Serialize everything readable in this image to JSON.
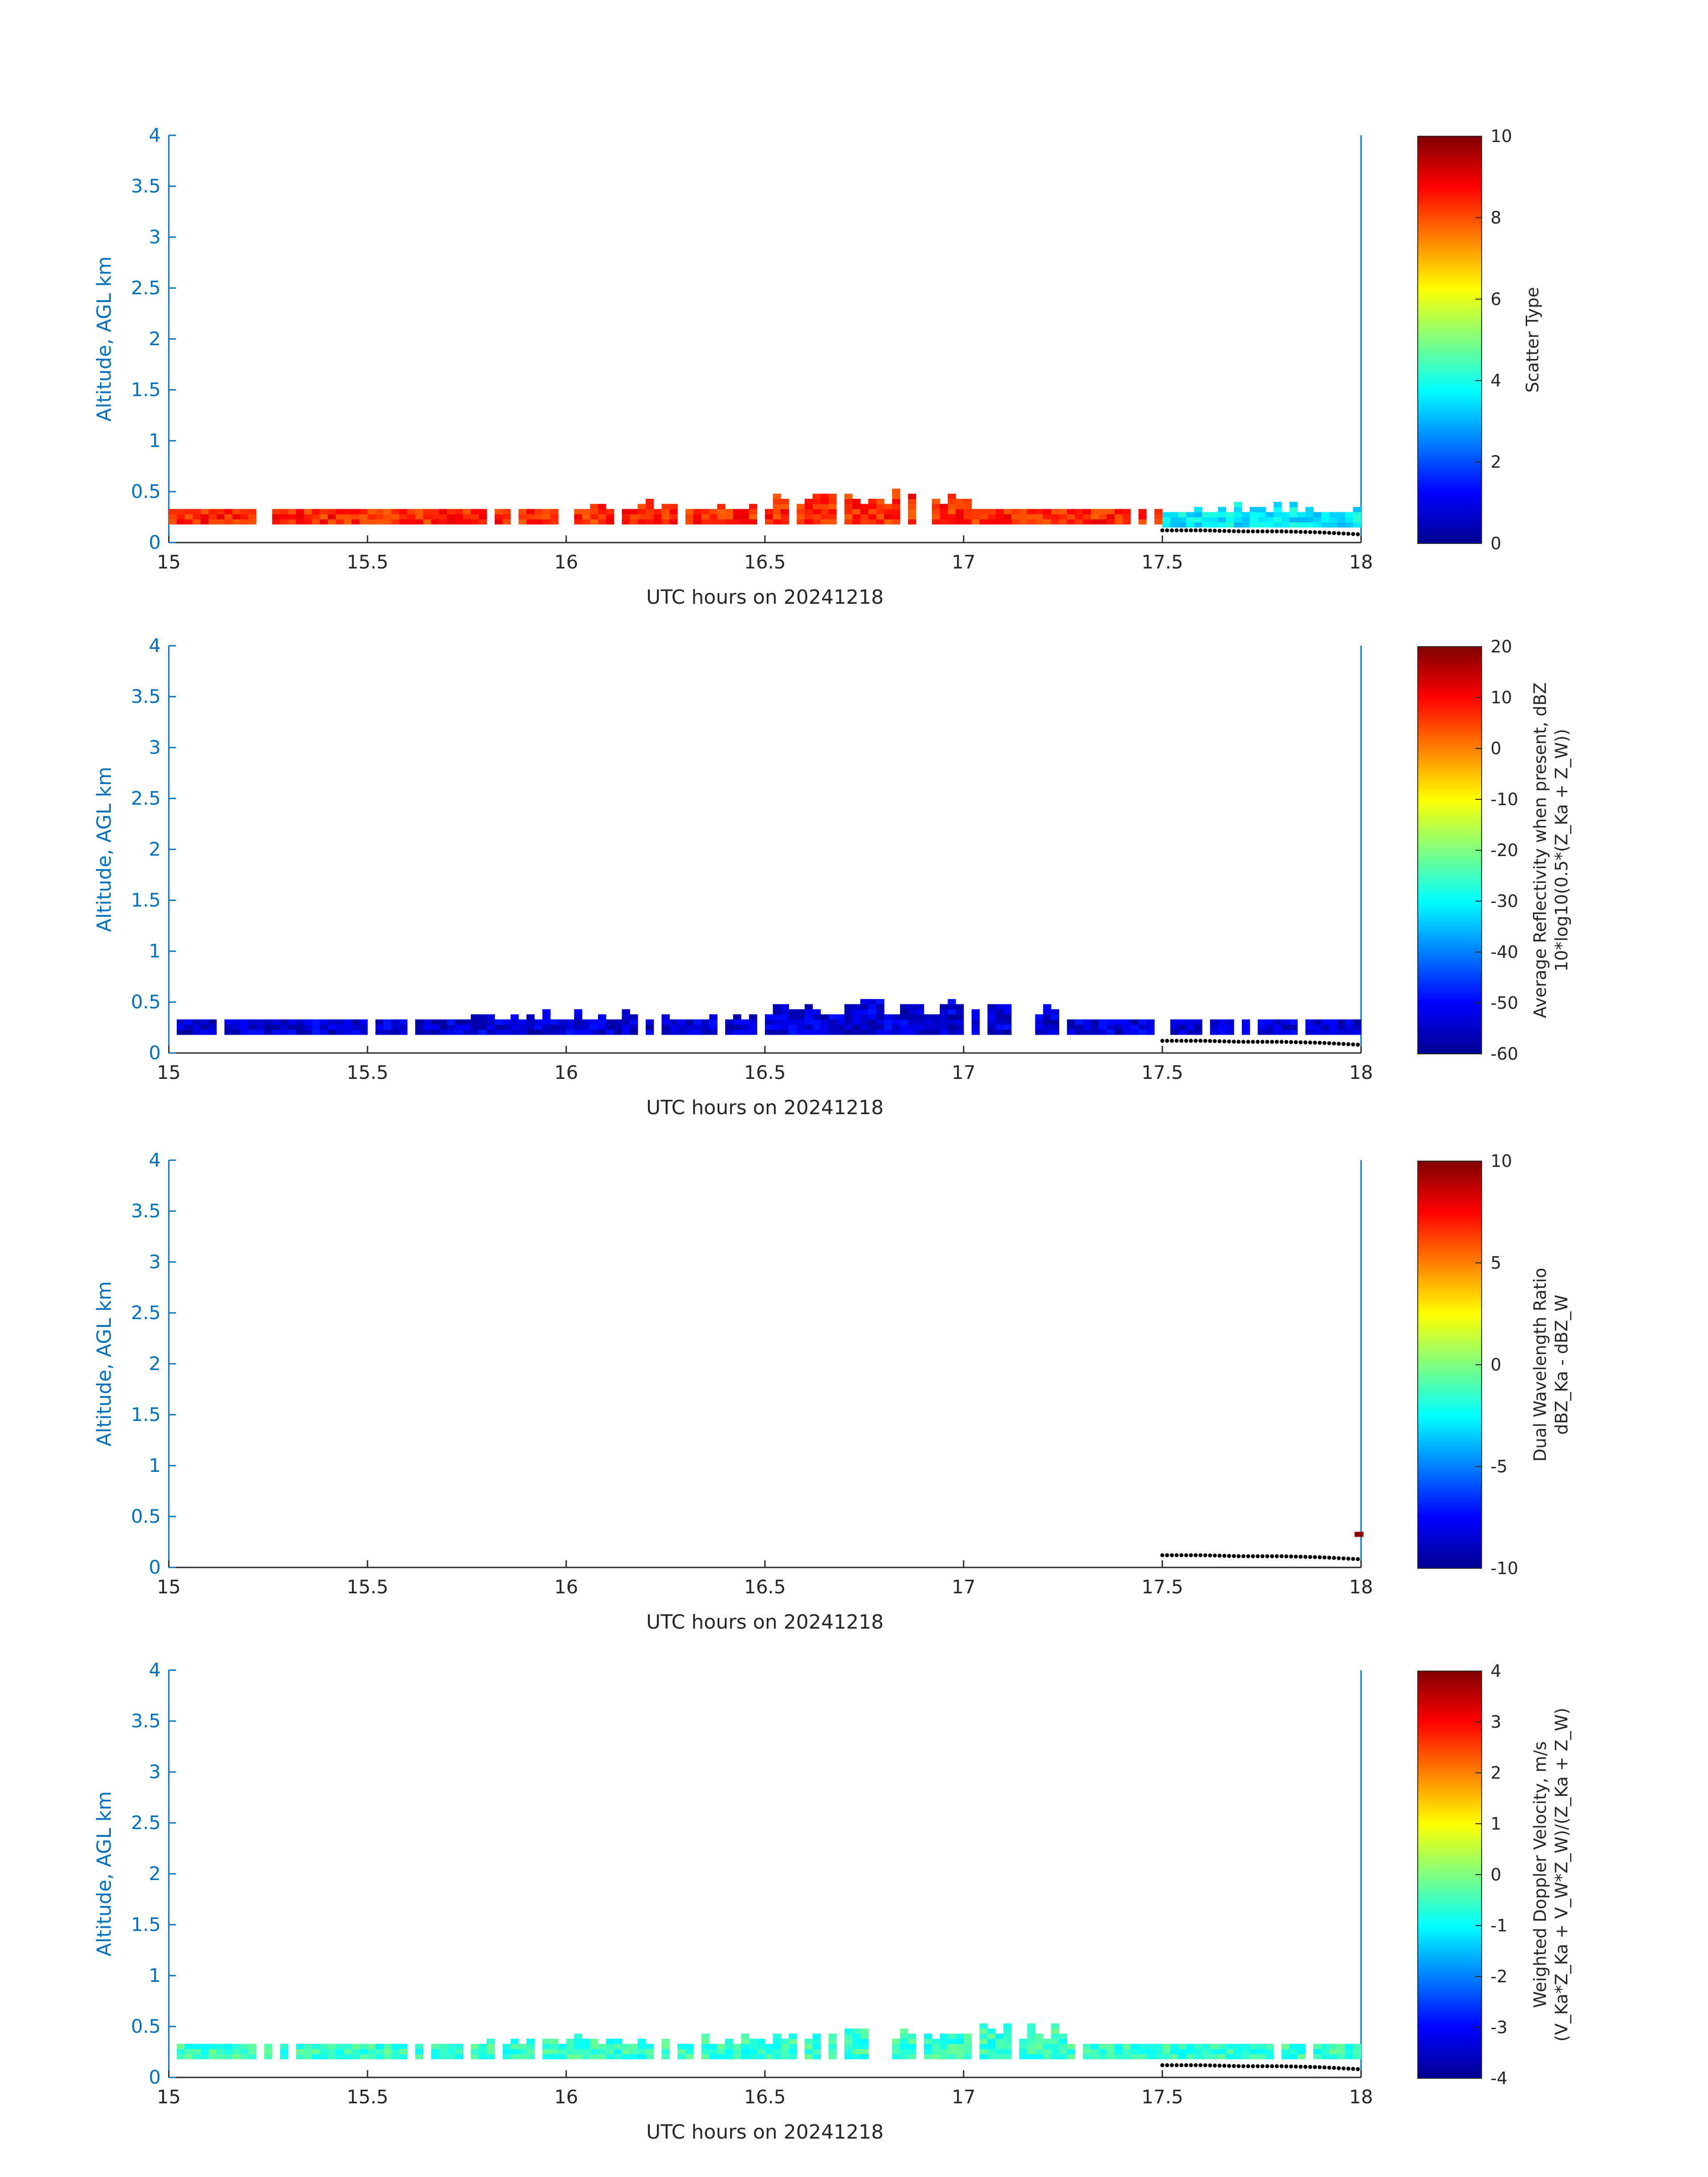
{
  "colors": {
    "axis_y": "#0072BD",
    "axis_x": "#262626",
    "surface_dots": "#000000"
  },
  "colormap": "jet",
  "chart_data": [
    {
      "type": "heatmap",
      "xlabel": "UTC hours on 20241218",
      "ylabel": "Altitude, AGL km",
      "xlim": [
        15,
        18
      ],
      "ylim": [
        0,
        4
      ],
      "xticks": [
        "15",
        "15.5",
        "16",
        "16.5",
        "17",
        "17.5",
        "18"
      ],
      "yticks": [
        "0",
        "0.5",
        "1",
        "1.5",
        "2",
        "2.5",
        "3",
        "3.5",
        "4"
      ],
      "colorbar": {
        "label_lines": [
          "Scatter Type"
        ],
        "clim": [
          0,
          10
        ],
        "ticks": [
          "0",
          "2",
          "4",
          "6",
          "8",
          "10"
        ]
      },
      "layers": [
        {
          "x0": 15.0,
          "x1": 17.5,
          "y0": 0.18,
          "y1": 0.28,
          "value": 8.4,
          "top_profile": [
            0.28,
            0.3,
            0.35,
            0.45,
            0.3
          ]
        },
        {
          "x0": 17.5,
          "x1": 18.0,
          "y0": 0.15,
          "y1": 0.3,
          "value": 3.6,
          "top_profile": [
            0.3,
            0.35,
            0.3
          ]
        }
      ],
      "surface": {
        "x": [
          17.5,
          17.6,
          17.7,
          17.8,
          17.9,
          18.0
        ],
        "y": [
          0.12,
          0.12,
          0.11,
          0.11,
          0.1,
          0.08
        ]
      }
    },
    {
      "type": "heatmap",
      "xlabel": "UTC hours on 20241218",
      "ylabel": "Altitude, AGL km",
      "xlim": [
        15,
        18
      ],
      "ylim": [
        0,
        4
      ],
      "xticks": [
        "15",
        "15.5",
        "16",
        "16.5",
        "17",
        "17.5",
        "18"
      ],
      "yticks": [
        "0",
        "0.5",
        "1",
        "1.5",
        "2",
        "2.5",
        "3",
        "3.5",
        "4"
      ],
      "colorbar": {
        "label_lines": [
          "Average Reflectivity when present, dBZ",
          "10*log10(0.5*(Z_Ka + Z_W))"
        ],
        "clim": [
          -60,
          20
        ],
        "ticks": [
          "-60",
          "-50",
          "-40",
          "-30",
          "-20",
          "-10",
          "0",
          "10",
          "20"
        ]
      },
      "layers": [
        {
          "x0": 15.0,
          "x1": 18.0,
          "y0": 0.18,
          "y1": 0.32,
          "value": -53,
          "top_profile": [
            0.3,
            0.35,
            0.45,
            0.3
          ]
        }
      ],
      "surface": {
        "x": [
          17.5,
          17.6,
          17.7,
          17.8,
          17.9,
          18.0
        ],
        "y": [
          0.12,
          0.12,
          0.11,
          0.11,
          0.1,
          0.08
        ]
      }
    },
    {
      "type": "heatmap",
      "xlabel": "UTC hours on 20241218",
      "ylabel": "Altitude, AGL km",
      "xlim": [
        15,
        18
      ],
      "ylim": [
        0,
        4
      ],
      "xticks": [
        "15",
        "15.5",
        "16",
        "16.5",
        "17",
        "17.5",
        "18"
      ],
      "yticks": [
        "0",
        "0.5",
        "1",
        "1.5",
        "2",
        "2.5",
        "3",
        "3.5",
        "4"
      ],
      "colorbar": {
        "label_lines": [
          "Dual Wavelength Ratio",
          "dBZ_Ka - dBZ_W"
        ],
        "clim": [
          -10,
          10
        ],
        "ticks": [
          "-10",
          "-5",
          "0",
          "5",
          "10"
        ]
      },
      "cells": [
        {
          "x": 17.995,
          "y": 0.3,
          "value": 9.8
        }
      ],
      "surface": {
        "x": [
          17.5,
          17.6,
          17.7,
          17.8,
          17.9,
          18.0
        ],
        "y": [
          0.12,
          0.12,
          0.11,
          0.11,
          0.1,
          0.08
        ]
      }
    },
    {
      "type": "heatmap",
      "xlabel": "UTC hours on 20241218",
      "ylabel": "Altitude, AGL km",
      "xlim": [
        15,
        18
      ],
      "ylim": [
        0,
        4
      ],
      "xticks": [
        "15",
        "15.5",
        "16",
        "16.5",
        "17",
        "17.5",
        "18"
      ],
      "yticks": [
        "0",
        "0.5",
        "1",
        "1.5",
        "2",
        "2.5",
        "3",
        "3.5",
        "4"
      ],
      "colorbar": {
        "label_lines": [
          "Weighted Doppler Velocity, m/s",
          "(V_Ka*Z_Ka + V_W*Z_W)/(Z_Ka + Z_W)"
        ],
        "clim": [
          -4,
          4
        ],
        "ticks": [
          "-4",
          "-3",
          "-2",
          "-1",
          "0",
          "1",
          "2",
          "3",
          "4"
        ]
      },
      "layers": [
        {
          "x0": 15.0,
          "x1": 18.0,
          "y0": 0.18,
          "y1": 0.32,
          "value": -0.6,
          "top_profile": [
            0.3,
            0.35,
            0.45,
            0.3
          ]
        }
      ],
      "surface": {
        "x": [
          17.5,
          17.6,
          17.7,
          17.8,
          17.9,
          18.0
        ],
        "y": [
          0.12,
          0.12,
          0.11,
          0.11,
          0.1,
          0.08
        ]
      }
    }
  ]
}
